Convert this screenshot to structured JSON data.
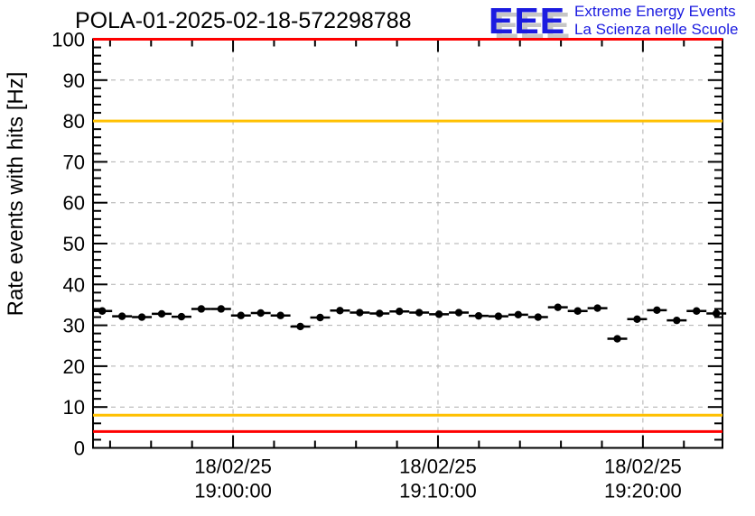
{
  "header": {
    "title": "POLA-01-2025-02-18-572298788",
    "logo": {
      "acronym": "EEE",
      "line1": "Extreme Energy Events",
      "line2": "La Scienza nelle Scuole"
    }
  },
  "colors": {
    "logo_blue": "#1b1be0",
    "logo_shadow": "#c6c6c6",
    "threshold_red": "#fe0000",
    "threshold_orange": "#ffc000",
    "grid_gray": "#aeaeae",
    "marker_black": "#000000"
  },
  "chart_data": {
    "type": "scatter",
    "title": "POLA-01-2025-02-18-572298788",
    "xlabel": "",
    "ylabel": "Rate events with hits [Hz]",
    "ylim": [
      0,
      100
    ],
    "ytick_major": 10,
    "ytick_minor": 2,
    "ytick_labels": [
      "0",
      "10",
      "20",
      "30",
      "40",
      "50",
      "60",
      "70",
      "80",
      "90",
      "100"
    ],
    "x_min": "18:53:10",
    "x_max": "19:23:53",
    "xtick_minor_seconds": 120,
    "xticks_major": [
      {
        "time": "19:00:00",
        "label_line1": "18/02/25",
        "label_line2": "19:00:00"
      },
      {
        "time": "19:10:00",
        "label_line1": "18/02/25",
        "label_line2": "19:10:00"
      },
      {
        "time": "19:20:00",
        "label_line1": "18/02/25",
        "label_line2": "19:20:00"
      }
    ],
    "grid": true,
    "legend": null,
    "thresholds": [
      {
        "name": "alarm-high",
        "value": 100,
        "color": "#fe0000"
      },
      {
        "name": "warning-high",
        "value": 80,
        "color": "#ffc000"
      },
      {
        "name": "warning-low",
        "value": 8,
        "color": "#ffc000"
      },
      {
        "name": "alarm-low",
        "value": 4,
        "color": "#fe0000"
      }
    ],
    "series": [
      {
        "name": "rate-events-with-hits",
        "marker": "filled-circle",
        "color": "#000000",
        "xerr_seconds": 29,
        "points": [
          {
            "time": "18:53:37",
            "value": 33.5
          },
          {
            "time": "18:54:35",
            "value": 32.2
          },
          {
            "time": "18:55:33",
            "value": 32.0
          },
          {
            "time": "18:56:31",
            "value": 32.8
          },
          {
            "time": "18:57:29",
            "value": 32.1
          },
          {
            "time": "18:58:27",
            "value": 34.0
          },
          {
            "time": "18:59:25",
            "value": 34.0
          },
          {
            "time": "19:00:23",
            "value": 32.4
          },
          {
            "time": "19:01:21",
            "value": 33.0
          },
          {
            "time": "19:02:19",
            "value": 32.4
          },
          {
            "time": "19:03:17",
            "value": 29.7
          },
          {
            "time": "19:04:15",
            "value": 31.9
          },
          {
            "time": "19:05:13",
            "value": 33.6
          },
          {
            "time": "19:06:11",
            "value": 33.1
          },
          {
            "time": "19:07:09",
            "value": 32.9
          },
          {
            "time": "19:08:07",
            "value": 33.4
          },
          {
            "time": "19:09:05",
            "value": 33.1
          },
          {
            "time": "19:10:03",
            "value": 32.7
          },
          {
            "time": "19:11:01",
            "value": 33.1
          },
          {
            "time": "19:11:59",
            "value": 32.3
          },
          {
            "time": "19:12:57",
            "value": 32.2
          },
          {
            "time": "19:13:55",
            "value": 32.6
          },
          {
            "time": "19:14:53",
            "value": 32.0
          },
          {
            "time": "19:15:51",
            "value": 34.4
          },
          {
            "time": "19:16:49",
            "value": 33.5
          },
          {
            "time": "19:17:47",
            "value": 34.2
          },
          {
            "time": "19:18:45",
            "value": 26.7
          },
          {
            "time": "19:19:43",
            "value": 31.5
          },
          {
            "time": "19:20:41",
            "value": 33.7
          },
          {
            "time": "19:21:39",
            "value": 31.2
          },
          {
            "time": "19:22:37",
            "value": 33.5
          },
          {
            "time": "19:23:35",
            "value": 32.9
          }
        ]
      }
    ]
  }
}
